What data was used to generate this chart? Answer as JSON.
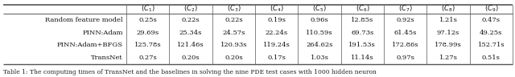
{
  "title": "Table 1: The computing times of TransNet and the baselines in solving the nine PDE test cases with 1000 hidden neuron",
  "col_headers": [
    "$(C_1)$",
    "$(C_2)$",
    "$(C_3)$",
    "$(C_4)$",
    "$(C_5)$",
    "$(C_6)$",
    "$(C_7)$",
    "$(C_8)$",
    "$(C_9)$"
  ],
  "row_labels": [
    "Random feature model",
    "PINN:Adam",
    "PINN:Adam+BFGS",
    "TransNet"
  ],
  "cell_data": [
    [
      "0.25s",
      "0.22s",
      "0.22s",
      "0.19s",
      "0.96s",
      "12.85s",
      "0.92s",
      "1.21s",
      "0.47s"
    ],
    [
      "29.69s",
      "25.34s",
      "24.57s",
      "22.24s",
      "110.59s",
      "69.73s",
      "61.45s",
      "97.12s",
      "49.25s"
    ],
    [
      "125.78s",
      "121.46s",
      "120.93s",
      "119.24s",
      "264.62s",
      "191.53s",
      "172.86s",
      "178.99s",
      "152.71s"
    ],
    [
      "0.27s",
      "0.20s",
      "0.20s",
      "0.17s",
      "1.03s",
      "11.14s",
      "0.97s",
      "1.27s",
      "0.51s"
    ]
  ],
  "bg_color": "#ffffff",
  "text_color": "#111111",
  "caption_color": "#222222",
  "line_color": "#555555",
  "font_size": 6.0,
  "caption_font_size": 5.5,
  "fig_width": 6.4,
  "fig_height": 0.96,
  "dpi": 100
}
